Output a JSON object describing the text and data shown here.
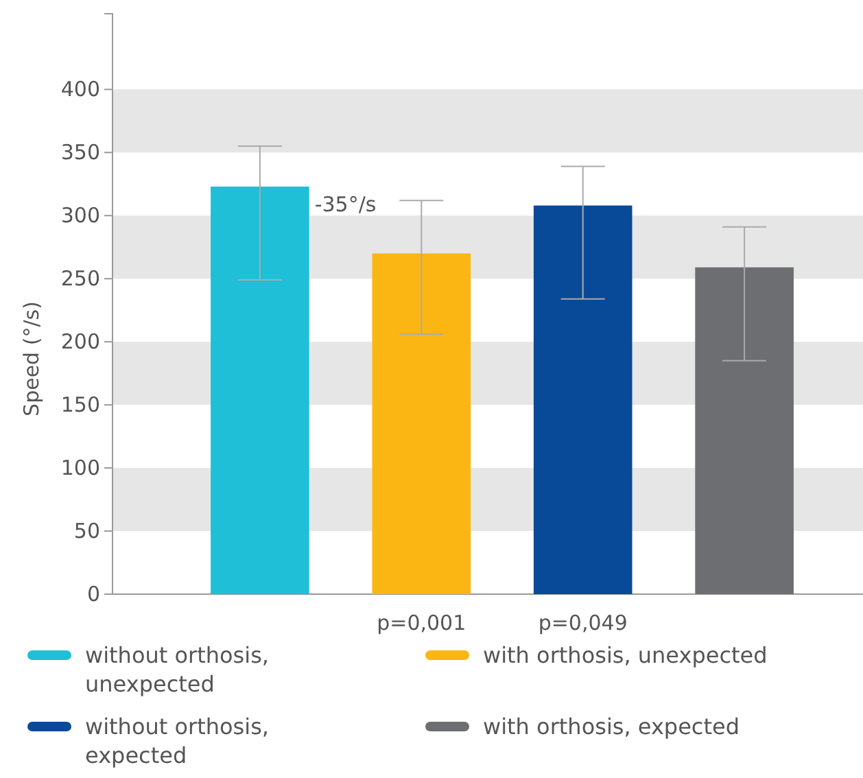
{
  "chart_data": {
    "type": "bar",
    "ylabel": "Speed (°/s)",
    "categories": [
      null,
      null,
      null,
      null
    ],
    "series": [
      {
        "name": "without orthosis, unexpected",
        "color": "#1fbfd8",
        "values": [
          323,
          null,
          null,
          null
        ],
        "errors": [
          [
            249,
            355
          ],
          null,
          null,
          null
        ]
      },
      {
        "name": "with orthosis, unexpected",
        "color": "#fbb614",
        "values": [
          null,
          270,
          null,
          null
        ],
        "errors": [
          null,
          [
            206,
            312
          ],
          null,
          null
        ]
      },
      {
        "name": "without orthosis, expected",
        "color": "#084a98",
        "values": [
          null,
          null,
          308,
          null
        ],
        "errors": [
          null,
          null,
          [
            234,
            339
          ],
          null
        ]
      },
      {
        "name": "with orthosis, expected",
        "color": "#6d6e71",
        "values": [
          null,
          null,
          null,
          259
        ],
        "errors": [
          null,
          null,
          null,
          [
            185,
            291
          ]
        ]
      }
    ],
    "ylim": [
      0,
      460
    ],
    "yticks": [
      0,
      50,
      100,
      150,
      200,
      250,
      300,
      350,
      400
    ],
    "legend": "bottom",
    "bands": [
      {
        "axis": "y",
        "from": 50,
        "to": 100,
        "color": "#e6e6e6"
      },
      {
        "axis": "y",
        "from": 150,
        "to": 200,
        "color": "#e6e6e6"
      },
      {
        "axis": "y",
        "from": 250,
        "to": 300,
        "color": "#e6e6e6"
      },
      {
        "axis": "y",
        "from": 350,
        "to": 400,
        "color": "#e6e6e6"
      }
    ],
    "annotations": [
      "-35°/s",
      "p=0,001",
      "p=0,049"
    ]
  }
}
